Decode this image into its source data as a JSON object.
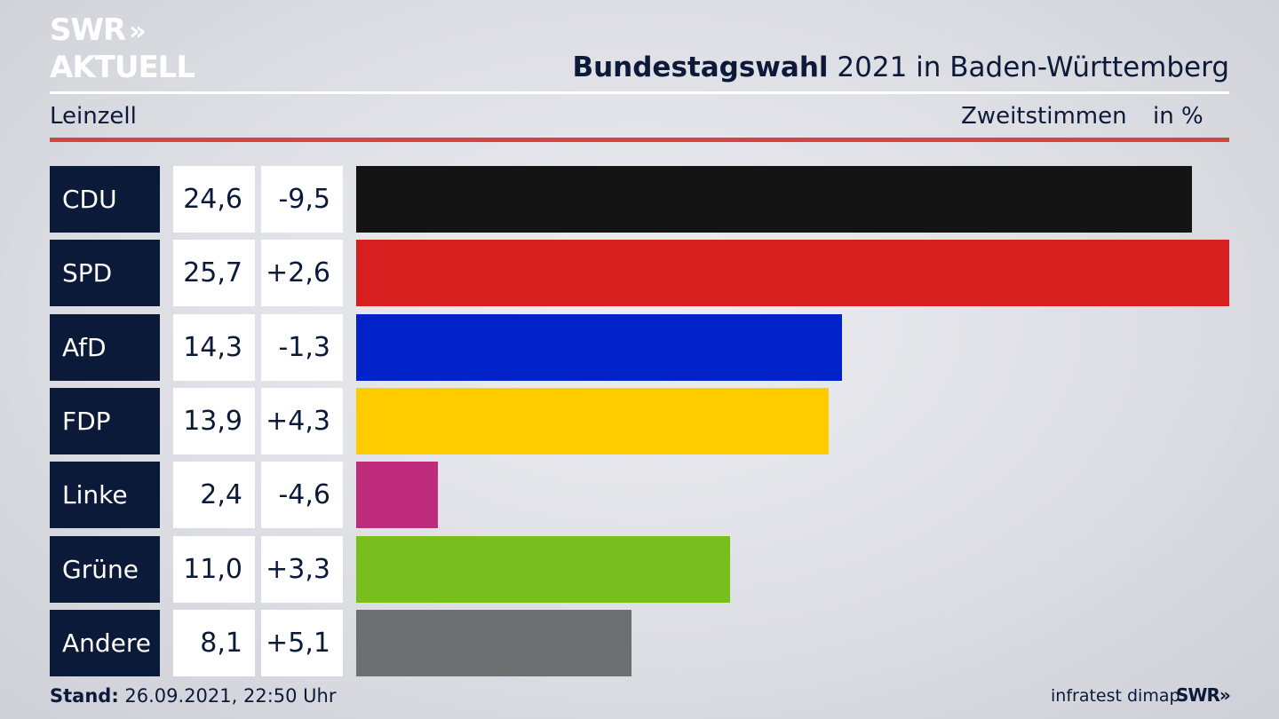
{
  "logo": {
    "line1": "SWR",
    "arrows": "»",
    "line2": "AKTUELL"
  },
  "header": {
    "title_bold": "Bundestagswahl",
    "title_rest": " 2021 in Baden-Württemberg",
    "region": "Leinzell",
    "metric": "Zweitstimmen",
    "unit": "in %"
  },
  "footer": {
    "stand_label": "Stand:",
    "stand_value": " 26.09.2021, 22:50 Uhr",
    "source": "infratest dimap",
    "brand": "SWR»"
  },
  "chart_data": {
    "type": "bar",
    "categories": [
      "CDU",
      "SPD",
      "AfD",
      "FDP",
      "Linke",
      "Grüne",
      "Andere"
    ],
    "values": [
      24.6,
      25.7,
      14.3,
      13.9,
      2.4,
      11.0,
      8.1
    ],
    "value_labels": [
      "24,6",
      "25,7",
      "14,3",
      "13,9",
      "2,4",
      "11,0",
      "8,1"
    ],
    "changes": [
      -9.5,
      2.6,
      -1.3,
      4.3,
      -4.6,
      3.3,
      5.1
    ],
    "change_labels": [
      "-9,5",
      "+2,6",
      "-1,3",
      "+4,3",
      "-4,6",
      "+3,3",
      "+5,1"
    ],
    "colors": [
      "#141414",
      "#d71f1f",
      "#0022c8",
      "#ffcc00",
      "#be2c7b",
      "#78be1e",
      "#6e6f71"
    ],
    "xlim": [
      0,
      25.7
    ]
  }
}
